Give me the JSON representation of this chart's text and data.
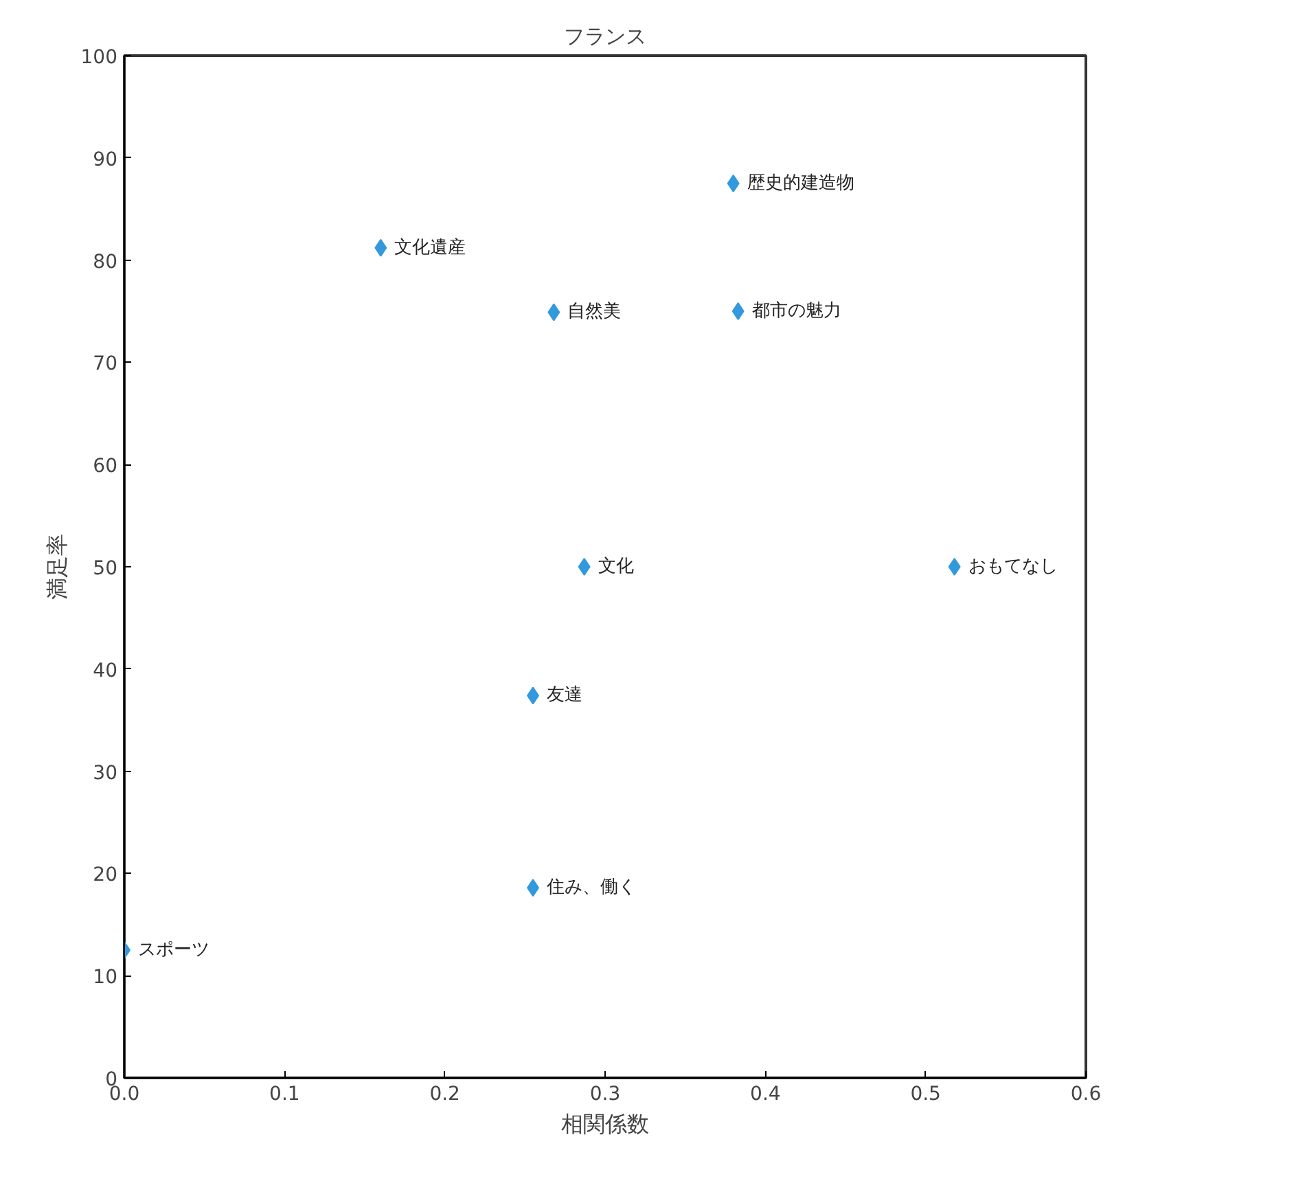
{
  "chart_data": {
    "type": "scatter",
    "title": "フランス",
    "xlabel": "相関係数",
    "ylabel": "満足率",
    "x": [
      0.38,
      0.16,
      0.268,
      0.383,
      0.287,
      0.518,
      0.255,
      0.255,
      0.0
    ],
    "series": [
      {
        "color": "#3399dd",
        "values": [
          87.5,
          81.2,
          74.9,
          75,
          50,
          50,
          37.4,
          18.6,
          12.5
        ]
      }
    ],
    "annotations": [
      {
        "text": "歴史的建造物",
        "x": 0.38,
        "y": 87.5
      },
      {
        "text": "文化遺産",
        "x": 0.16,
        "y": 81.2
      },
      {
        "text": "自然美",
        "x": 0.268,
        "y": 74.9
      },
      {
        "text": "都市の魅力",
        "x": 0.383,
        "y": 75
      },
      {
        "text": "文化",
        "x": 0.287,
        "y": 50
      },
      {
        "text": "おもてなし",
        "x": 0.518,
        "y": 50
      },
      {
        "text": "友達",
        "x": 0.255,
        "y": 37.4
      },
      {
        "text": "住み、働く",
        "x": 0.255,
        "y": 18.6
      },
      {
        "text": "スポーツ",
        "x": 0.0,
        "y": 12.5
      }
    ],
    "xlim": [
      0,
      0.6
    ],
    "ylim": [
      0,
      100
    ],
    "xticks": [
      {
        "value": 0,
        "label": "0.0"
      },
      0.1,
      0.2,
      0.3,
      0.4,
      0.5,
      0.6
    ],
    "yticks": [
      0,
      10,
      20,
      30,
      40,
      50,
      60,
      70,
      80,
      90,
      100
    ],
    "grid": false,
    "marker": "diamond"
  }
}
